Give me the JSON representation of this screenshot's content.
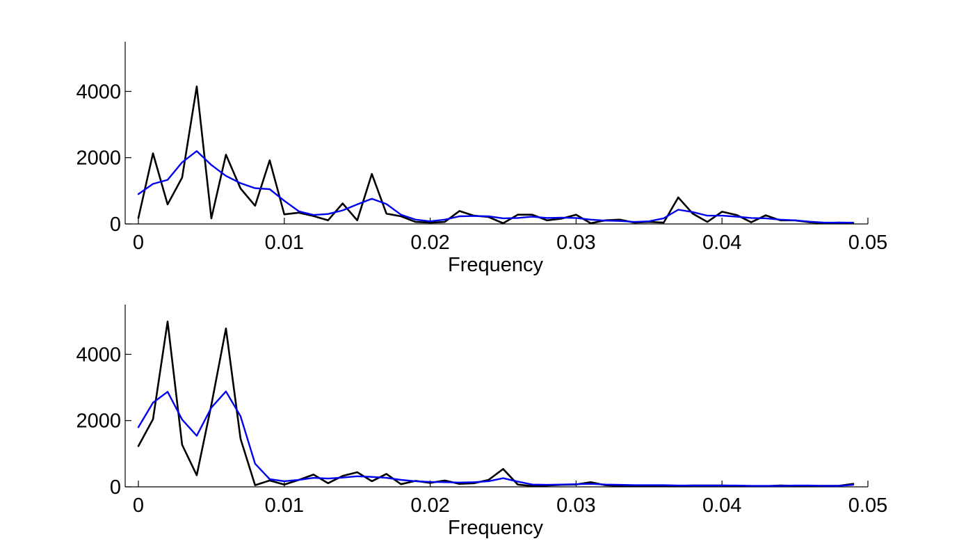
{
  "chart_data": [
    {
      "type": "line",
      "xlabel": "Frequency",
      "ylabel": "",
      "xlim": [
        0,
        0.05
      ],
      "ylim": [
        0,
        5500
      ],
      "xticks": [
        0,
        0.01,
        0.02,
        0.03,
        0.04,
        0.05
      ],
      "xtick_labels": [
        "0",
        "0.01",
        "0.02",
        "0.03",
        "0.04",
        "0.05"
      ],
      "yticks": [
        0,
        2000,
        4000
      ],
      "ytick_labels": [
        "0",
        "2000",
        "4000"
      ],
      "grid": false,
      "series": [
        {
          "color": "#000000",
          "x": [
            0,
            0.001,
            0.002,
            0.003,
            0.004,
            0.005,
            0.006,
            0.007,
            0.008,
            0.009,
            0.01,
            0.011,
            0.012,
            0.013,
            0.014,
            0.015,
            0.016,
            0.017,
            0.018,
            0.019,
            0.02,
            0.021,
            0.022,
            0.023,
            0.024,
            0.025,
            0.026,
            0.027,
            0.028,
            0.029,
            0.03,
            0.031,
            0.032,
            0.033,
            0.034,
            0.035,
            0.036,
            0.037,
            0.038,
            0.039,
            0.04,
            0.041,
            0.042,
            0.043,
            0.044,
            0.045,
            0.046,
            0.047,
            0.048,
            0.049
          ],
          "values": [
            180,
            2130,
            590,
            1400,
            4150,
            170,
            2090,
            1070,
            550,
            1920,
            290,
            340,
            240,
            110,
            620,
            110,
            1510,
            310,
            230,
            60,
            40,
            60,
            390,
            250,
            210,
            20,
            280,
            280,
            110,
            160,
            280,
            20,
            110,
            130,
            40,
            60,
            40,
            800,
            310,
            60,
            370,
            270,
            50,
            260,
            110,
            110,
            50,
            20,
            40,
            20
          ]
        },
        {
          "color": "#0000ee",
          "x": [
            0,
            0.001,
            0.002,
            0.003,
            0.004,
            0.005,
            0.006,
            0.007,
            0.008,
            0.009,
            0.01,
            0.011,
            0.012,
            0.013,
            0.014,
            0.015,
            0.016,
            0.017,
            0.018,
            0.019,
            0.02,
            0.021,
            0.022,
            0.023,
            0.024,
            0.025,
            0.026,
            0.027,
            0.028,
            0.029,
            0.03,
            0.031,
            0.032,
            0.033,
            0.034,
            0.035,
            0.036,
            0.037,
            0.038,
            0.039,
            0.04,
            0.041,
            0.042,
            0.043,
            0.044,
            0.045,
            0.046,
            0.047,
            0.048,
            0.049
          ],
          "values": [
            900,
            1210,
            1330,
            1860,
            2200,
            1780,
            1450,
            1230,
            1080,
            1050,
            700,
            380,
            270,
            300,
            410,
            590,
            760,
            600,
            280,
            130,
            80,
            130,
            230,
            240,
            230,
            170,
            180,
            220,
            180,
            190,
            180,
            130,
            100,
            90,
            60,
            80,
            170,
            430,
            360,
            250,
            250,
            220,
            180,
            170,
            130,
            110,
            70,
            40,
            40,
            40
          ]
        }
      ]
    },
    {
      "type": "line",
      "xlabel": "Frequency",
      "ylabel": "",
      "xlim": [
        0,
        0.05
      ],
      "ylim": [
        0,
        5500
      ],
      "xticks": [
        0,
        0.01,
        0.02,
        0.03,
        0.04,
        0.05
      ],
      "xtick_labels": [
        "0",
        "0.01",
        "0.02",
        "0.03",
        "0.04",
        "0.05"
      ],
      "yticks": [
        0,
        2000,
        4000
      ],
      "ytick_labels": [
        "0",
        "2000",
        "4000"
      ],
      "grid": false,
      "series": [
        {
          "color": "#000000",
          "x": [
            0,
            0.001,
            0.002,
            0.003,
            0.004,
            0.005,
            0.006,
            0.007,
            0.008,
            0.009,
            0.01,
            0.011,
            0.012,
            0.013,
            0.014,
            0.015,
            0.016,
            0.017,
            0.018,
            0.019,
            0.02,
            0.021,
            0.022,
            0.023,
            0.024,
            0.025,
            0.026,
            0.027,
            0.028,
            0.029,
            0.03,
            0.031,
            0.032,
            0.033,
            0.034,
            0.035,
            0.036,
            0.037,
            0.038,
            0.039,
            0.04,
            0.041,
            0.042,
            0.043,
            0.044,
            0.045,
            0.046,
            0.047,
            0.048,
            0.049
          ],
          "values": [
            1230,
            2040,
            4990,
            1270,
            350,
            2470,
            4780,
            1450,
            50,
            190,
            70,
            210,
            370,
            110,
            330,
            440,
            170,
            390,
            80,
            180,
            120,
            190,
            90,
            110,
            210,
            540,
            70,
            20,
            40,
            60,
            70,
            140,
            50,
            30,
            40,
            30,
            20,
            30,
            40,
            40,
            40,
            30,
            20,
            20,
            40,
            30,
            20,
            30,
            30,
            90
          ]
        },
        {
          "color": "#0000ee",
          "x": [
            0,
            0.001,
            0.002,
            0.003,
            0.004,
            0.005,
            0.006,
            0.007,
            0.008,
            0.009,
            0.01,
            0.011,
            0.012,
            0.013,
            0.014,
            0.015,
            0.016,
            0.017,
            0.018,
            0.019,
            0.02,
            0.021,
            0.022,
            0.023,
            0.024,
            0.025,
            0.026,
            0.027,
            0.028,
            0.029,
            0.03,
            0.031,
            0.032,
            0.033,
            0.034,
            0.035,
            0.036,
            0.037,
            0.038,
            0.039,
            0.04,
            0.041,
            0.042,
            0.043,
            0.044,
            0.045,
            0.046,
            0.047,
            0.048,
            0.049
          ],
          "values": [
            1800,
            2540,
            2870,
            2030,
            1540,
            2390,
            2880,
            2130,
            700,
            230,
            170,
            210,
            270,
            250,
            280,
            320,
            300,
            270,
            210,
            170,
            150,
            140,
            130,
            140,
            170,
            260,
            160,
            70,
            60,
            70,
            80,
            90,
            70,
            60,
            50,
            50,
            50,
            40,
            40,
            40,
            40,
            40,
            30,
            30,
            30,
            40,
            40,
            30,
            30,
            60
          ]
        }
      ]
    }
  ]
}
